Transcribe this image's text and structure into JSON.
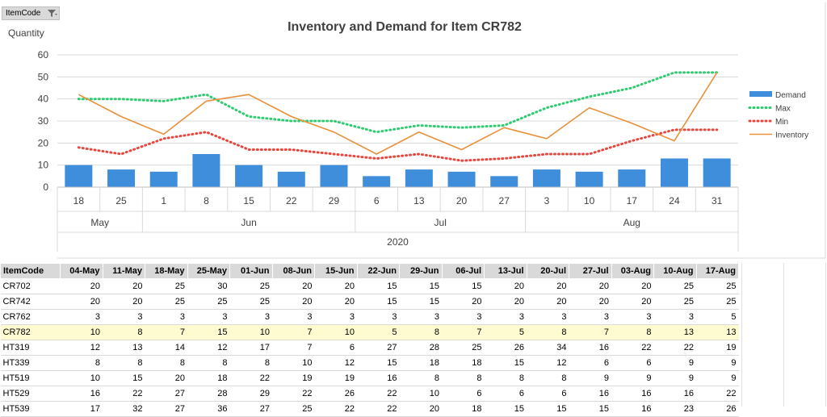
{
  "filter": {
    "label": "ItemCode"
  },
  "chart": {
    "title": "Inventory and Demand for Item CR782",
    "ylabel": "Quantity",
    "yticks": [
      "0",
      "10",
      "20",
      "30",
      "40",
      "50",
      "60"
    ],
    "legend": [
      "Demand",
      "Max",
      "Min",
      "Inventory"
    ],
    "colors": {
      "Demand": "#3e8edc",
      "Max": "#2ecc71",
      "Min": "#e8453c",
      "Inventory": "#e8913a"
    }
  },
  "chart_data": {
    "type": "bar",
    "title": "Inventory and Demand for Item CR782",
    "ylabel": "Quantity",
    "ylim": [
      0,
      60
    ],
    "x_day_labels": [
      "18",
      "25",
      "1",
      "8",
      "15",
      "22",
      "29",
      "6",
      "13",
      "20",
      "27",
      "3",
      "10",
      "17",
      "24",
      "31"
    ],
    "x_month_labels": [
      "May",
      "Jun",
      "Jul",
      "Aug"
    ],
    "x_year_label": "2020",
    "legend_position": "right",
    "series": [
      {
        "name": "Demand",
        "type": "bar",
        "values": [
          10,
          8,
          7,
          15,
          10,
          7,
          10,
          5,
          8,
          7,
          5,
          8,
          7,
          8,
          13,
          13
        ]
      },
      {
        "name": "Max",
        "type": "line",
        "style": "dotted",
        "values": [
          40,
          40,
          39,
          42,
          32,
          30,
          30,
          25,
          28,
          27,
          28,
          36,
          41,
          45,
          52,
          52
        ]
      },
      {
        "name": "Min",
        "type": "line",
        "style": "dotted",
        "values": [
          18,
          15,
          22,
          25,
          17,
          17,
          15,
          13,
          15,
          12,
          13,
          15,
          15,
          21,
          26,
          26
        ]
      },
      {
        "name": "Inventory",
        "type": "line",
        "style": "solid",
        "values": [
          42,
          32,
          24,
          39,
          42,
          32,
          25,
          15,
          25,
          17,
          27,
          22,
          36,
          29,
          21,
          52
        ]
      }
    ]
  },
  "table": {
    "columns": [
      "ItemCode",
      "04-May",
      "11-May",
      "18-May",
      "25-May",
      "01-Jun",
      "08-Jun",
      "15-Jun",
      "22-Jun",
      "29-Jun",
      "06-Jul",
      "13-Jul",
      "20-Jul",
      "27-Jul",
      "03-Aug",
      "10-Aug",
      "17-Aug"
    ],
    "rows": [
      [
        "CR702",
        "20",
        "20",
        "25",
        "30",
        "25",
        "20",
        "20",
        "15",
        "15",
        "15",
        "20",
        "20",
        "20",
        "20",
        "25",
        "25"
      ],
      [
        "CR742",
        "20",
        "20",
        "25",
        "25",
        "25",
        "20",
        "20",
        "15",
        "15",
        "20",
        "20",
        "20",
        "20",
        "20",
        "25",
        "25"
      ],
      [
        "CR762",
        "3",
        "3",
        "3",
        "3",
        "3",
        "3",
        "3",
        "3",
        "3",
        "3",
        "3",
        "3",
        "3",
        "3",
        "3",
        "5"
      ],
      [
        "CR782",
        "10",
        "8",
        "7",
        "15",
        "10",
        "7",
        "10",
        "5",
        "8",
        "7",
        "5",
        "8",
        "7",
        "8",
        "13",
        "13"
      ],
      [
        "HT319",
        "12",
        "13",
        "14",
        "12",
        "17",
        "7",
        "6",
        "27",
        "28",
        "25",
        "26",
        "34",
        "16",
        "22",
        "22",
        "19"
      ],
      [
        "HT339",
        "8",
        "8",
        "8",
        "8",
        "8",
        "10",
        "12",
        "15",
        "18",
        "18",
        "15",
        "12",
        "6",
        "6",
        "9",
        "9"
      ],
      [
        "HT519",
        "10",
        "15",
        "20",
        "18",
        "22",
        "19",
        "19",
        "16",
        "8",
        "8",
        "8",
        "8",
        "9",
        "9",
        "9",
        "9"
      ],
      [
        "HT529",
        "16",
        "22",
        "27",
        "28",
        "29",
        "22",
        "26",
        "22",
        "10",
        "6",
        "6",
        "6",
        "16",
        "16",
        "16",
        "22"
      ],
      [
        "HT539",
        "17",
        "32",
        "27",
        "36",
        "27",
        "25",
        "22",
        "22",
        "20",
        "18",
        "15",
        "15",
        "15",
        "16",
        "23",
        "26"
      ]
    ],
    "highlight_row": "CR782"
  }
}
